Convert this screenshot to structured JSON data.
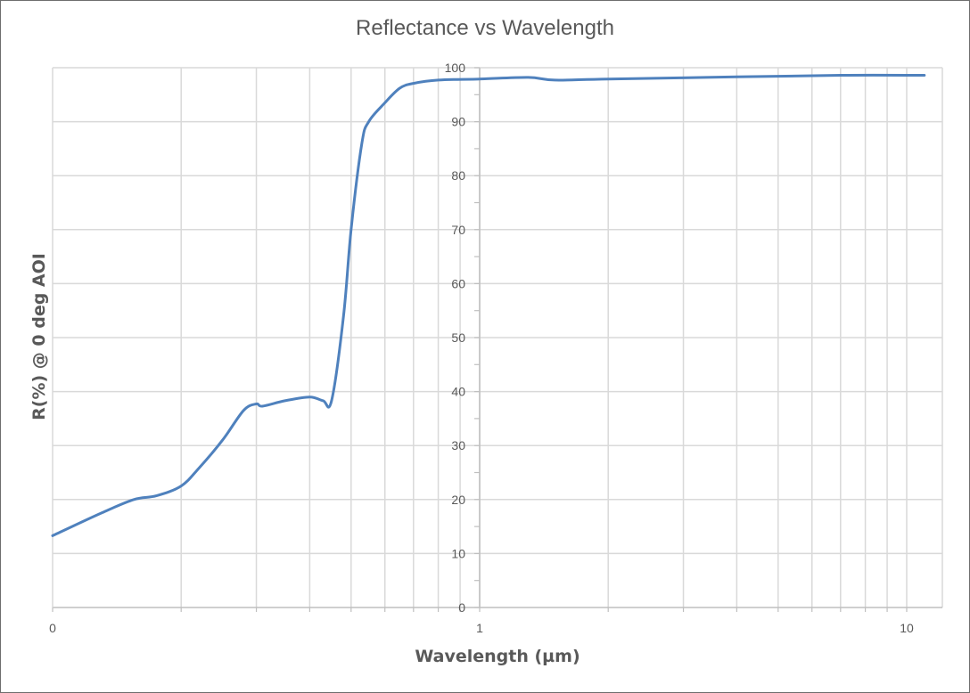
{
  "chart_data": {
    "type": "line",
    "title": "Reflectance vs Wavelength",
    "xlabel": "Wavelength (µm)",
    "ylabel": "R(%) @ 0 deg AOI",
    "x_scale": "log",
    "xlim": [
      0.1,
      11
    ],
    "ylim": [
      0,
      100
    ],
    "x_tick_values": [
      0.1,
      1,
      10
    ],
    "x_tick_labels": [
      "0",
      "1",
      "10"
    ],
    "y_tick_values": [
      0,
      10,
      20,
      30,
      40,
      50,
      60,
      70,
      80,
      90,
      100
    ],
    "y_tick_labels": [
      "0",
      "10",
      "20",
      "30",
      "40",
      "50",
      "60",
      "70",
      "80",
      "90",
      "100"
    ],
    "grid": true,
    "legend": "none",
    "series_color": "#4f81bd",
    "grid_color": "#d9d9d9",
    "series": [
      {
        "x": [
          0.1,
          0.13,
          0.155,
          0.175,
          0.2,
          0.22,
          0.25,
          0.28,
          0.3,
          0.31,
          0.35,
          0.4,
          0.43,
          0.45,
          0.48,
          0.5,
          0.53,
          0.55,
          0.6,
          0.65,
          0.7,
          0.8,
          1.0,
          1.3,
          1.5,
          2.0,
          4.0,
          7.0,
          11.0
        ],
        "y": [
          13.3,
          17.5,
          20.0,
          20.7,
          22.5,
          25.8,
          31.0,
          36.5,
          37.7,
          37.3,
          38.3,
          39.0,
          38.3,
          38.3,
          54.0,
          70.0,
          86.0,
          90.0,
          93.5,
          96.2,
          97.1,
          97.7,
          97.9,
          98.2,
          97.7,
          97.9,
          98.3,
          98.6,
          98.6
        ]
      }
    ]
  }
}
